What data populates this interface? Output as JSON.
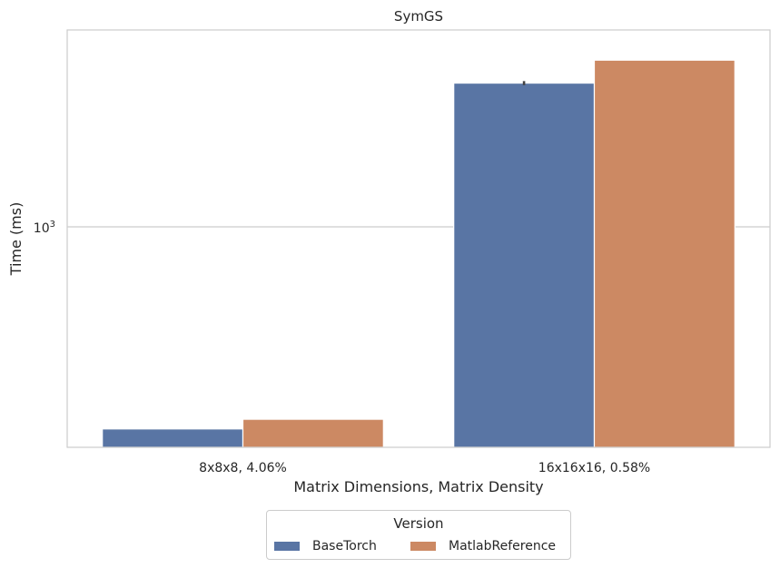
{
  "chart_data": {
    "type": "bar",
    "title": "SymGS",
    "xlabel": "Matrix Dimensions, Matrix Density",
    "ylabel": "Time (ms)",
    "yscale": "log",
    "ylim": [
      340,
      2620
    ],
    "y_ticks": [
      {
        "value": 1000,
        "base": "10",
        "exp": "3"
      }
    ],
    "categories": [
      "8x8x8, 4.06%",
      "16x16x16, 0.58%"
    ],
    "series": [
      {
        "name": "BaseTorch",
        "color": "#5975a4",
        "values": [
          372,
          2020
        ],
        "error": [
          null,
          [
            2000,
            2040
          ]
        ]
      },
      {
        "name": "MatlabReference",
        "color": "#cc8963",
        "values": [
          390,
          2260
        ],
        "error": [
          null,
          null
        ]
      }
    ],
    "grid": true,
    "legend": {
      "title": "Version",
      "placement": "bottom-center"
    }
  }
}
